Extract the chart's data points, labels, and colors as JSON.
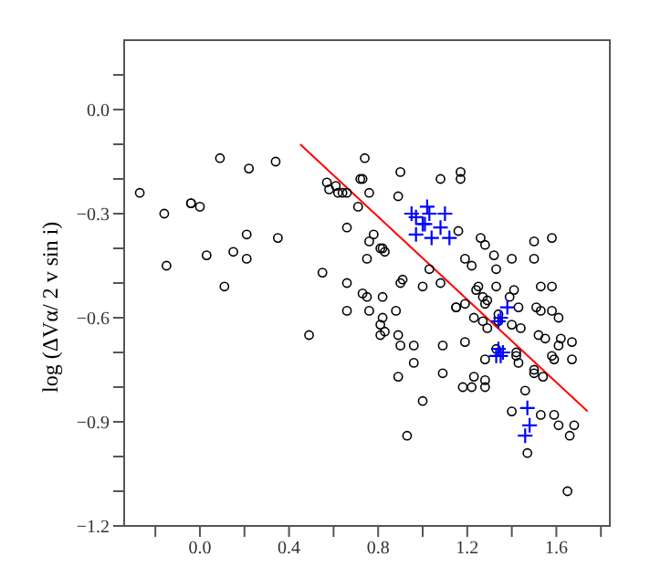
{
  "chart_data": {
    "type": "scatter",
    "ylabel": "log (ΔVα/ 2 v sin i)",
    "xlim": [
      -0.34,
      1.84
    ],
    "ylim": [
      -1.2,
      0.2
    ],
    "xticks": [
      {
        "value": -0.2,
        "label": null
      },
      {
        "value": 0,
        "label": "0.0"
      },
      {
        "value": 0.2,
        "label": null
      },
      {
        "value": 0.4,
        "label": "0.4"
      },
      {
        "value": 0.6,
        "label": null
      },
      {
        "value": 0.8,
        "label": "0.8"
      },
      {
        "value": 1.0,
        "label": null
      },
      {
        "value": 1.2,
        "label": "1.2"
      },
      {
        "value": 1.4,
        "label": null
      },
      {
        "value": 1.6,
        "label": "1.6"
      },
      {
        "value": 1.8,
        "label": null
      }
    ],
    "yticks": [
      {
        "value": -1.2,
        "label": "−1.2"
      },
      {
        "value": -1.1,
        "label": null
      },
      {
        "value": -1.0,
        "label": null
      },
      {
        "value": -0.9,
        "label": "−0.9"
      },
      {
        "value": -0.8,
        "label": null
      },
      {
        "value": -0.7,
        "label": null
      },
      {
        "value": -0.6,
        "label": "−0.6"
      },
      {
        "value": -0.5,
        "label": null
      },
      {
        "value": -0.4,
        "label": null
      },
      {
        "value": -0.3,
        "label": "−0.3"
      },
      {
        "value": -0.2,
        "label": null
      },
      {
        "value": -0.1,
        "label": null
      },
      {
        "value": 0,
        "label": "0.0"
      },
      {
        "value": 0.1,
        "label": null
      }
    ],
    "grid": false,
    "legend": false,
    "series": [
      {
        "marker": "circle",
        "color": "#000000",
        "x": [
          -0.27,
          -0.16,
          -0.15,
          -0.04,
          -0.04,
          0.0,
          0.03,
          0.09,
          0.11,
          0.15,
          0.21,
          0.21,
          0.22,
          0.34,
          0.35,
          0.49,
          0.55,
          0.57,
          0.58,
          0.61,
          0.62,
          0.64,
          0.66,
          0.66,
          0.66,
          0.66,
          0.71,
          0.72,
          0.73,
          0.74,
          0.76,
          0.76,
          0.78,
          0.75,
          0.73,
          0.75,
          0.76,
          0.81,
          0.82,
          0.83,
          0.82,
          0.82,
          0.81,
          0.81,
          0.83,
          0.88,
          0.89,
          0.9,
          0.89,
          0.89,
          0.9,
          0.91,
          0.9,
          0.96,
          0.96,
          0.93,
          1.0,
          1.0,
          1.03,
          1.08,
          1.08,
          1.09,
          1.09,
          1.15,
          1.15,
          1.16,
          1.17,
          1.17,
          1.19,
          1.18,
          1.19,
          1.19,
          1.22,
          1.23,
          1.23,
          1.22,
          1.24,
          1.25,
          1.26,
          1.28,
          1.27,
          1.28,
          1.29,
          1.27,
          1.29,
          1.28,
          1.28,
          1.28,
          1.32,
          1.33,
          1.33,
          1.34,
          1.34,
          1.33,
          1.4,
          1.39,
          1.41,
          1.4,
          1.43,
          1.42,
          1.42,
          1.44,
          1.43,
          1.5,
          1.5,
          1.54,
          1.46,
          1.4,
          1.47,
          1.5,
          1.5,
          1.58,
          1.53,
          1.58,
          1.51,
          1.53,
          1.58,
          1.61,
          1.52,
          1.55,
          1.62,
          1.61,
          1.58,
          1.59,
          1.67,
          1.67,
          1.53,
          1.59,
          1.61,
          1.68,
          1.66,
          1.65
        ],
        "values": [
          -0.24,
          -0.3,
          -0.45,
          -0.27,
          -0.27,
          -0.28,
          -0.42,
          -0.14,
          -0.51,
          -0.41,
          -0.36,
          -0.43,
          -0.17,
          -0.15,
          -0.37,
          -0.65,
          -0.47,
          -0.21,
          -0.23,
          -0.22,
          -0.24,
          -0.24,
          -0.24,
          -0.34,
          -0.5,
          -0.58,
          -0.28,
          -0.2,
          -0.2,
          -0.14,
          -0.24,
          -0.38,
          -0.36,
          -0.43,
          -0.53,
          -0.54,
          -0.58,
          -0.4,
          -0.4,
          -0.41,
          -0.54,
          -0.6,
          -0.62,
          -0.65,
          -0.64,
          -0.58,
          -0.65,
          -0.68,
          -0.77,
          -0.25,
          -0.18,
          -0.49,
          -0.5,
          -0.68,
          -0.73,
          -0.94,
          -0.84,
          -0.51,
          -0.46,
          -0.2,
          -0.5,
          -0.68,
          -0.76,
          -0.57,
          -0.57,
          -0.35,
          -0.2,
          -0.18,
          -0.43,
          -0.8,
          -0.56,
          -0.67,
          -0.45,
          -0.6,
          -0.77,
          -0.8,
          -0.52,
          -0.51,
          -0.37,
          -0.39,
          -0.54,
          -0.56,
          -0.55,
          -0.61,
          -0.63,
          -0.72,
          -0.78,
          -0.8,
          -0.42,
          -0.46,
          -0.51,
          -0.61,
          -0.59,
          -0.69,
          -0.43,
          -0.54,
          -0.52,
          -0.62,
          -0.57,
          -0.7,
          -0.71,
          -0.63,
          -0.73,
          -0.75,
          -0.76,
          -0.77,
          -0.81,
          -0.87,
          -0.99,
          -0.38,
          -0.43,
          -0.37,
          -0.51,
          -0.51,
          -0.57,
          -0.58,
          -0.58,
          -0.6,
          -0.65,
          -0.66,
          -0.66,
          -0.68,
          -0.71,
          -0.72,
          -0.67,
          -0.72,
          -0.88,
          -0.88,
          -0.91,
          -0.91,
          -0.94,
          -1.1
        ]
      },
      {
        "marker": "cross",
        "color": "#0000ff",
        "x": [
          0.95,
          0.97,
          1.0,
          1.01,
          1.02,
          1.03,
          1.1,
          1.08,
          1.04,
          0.97,
          1.12,
          1.35,
          1.34,
          1.38,
          1.34,
          1.36,
          1.35,
          1.33,
          1.47,
          1.48,
          1.46
        ],
        "values": [
          -0.3,
          -0.31,
          -0.33,
          -0.33,
          -0.28,
          -0.3,
          -0.3,
          -0.34,
          -0.37,
          -0.36,
          -0.37,
          -0.6,
          -0.61,
          -0.57,
          -0.69,
          -0.7,
          -0.71,
          -0.71,
          -0.86,
          -0.91,
          -0.94
        ]
      },
      {
        "type": "line",
        "marker": "none",
        "line_style": "solid",
        "color": "#ff0000",
        "x": [
          0.45,
          1.74
        ],
        "values": [
          -0.1,
          -0.87
        ]
      }
    ]
  }
}
